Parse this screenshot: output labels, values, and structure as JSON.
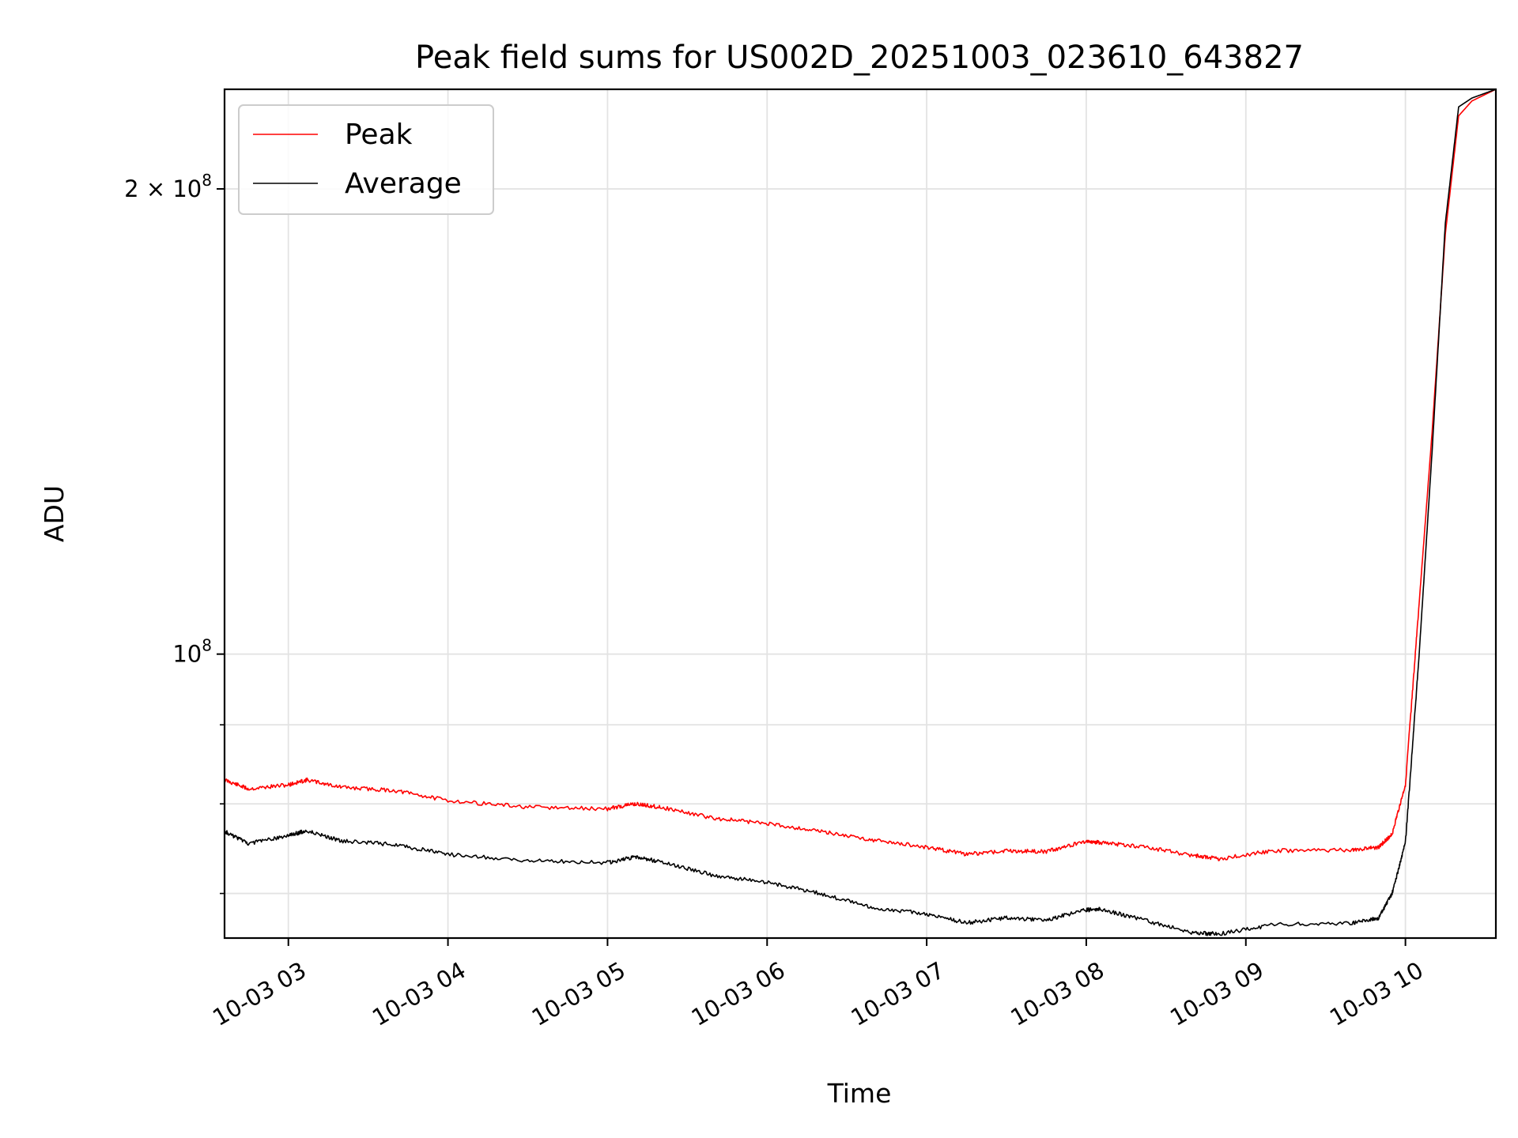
{
  "chart_data": {
    "type": "line",
    "title": "Peak field sums for US002D_20251003_023610_643827",
    "xlabel": "Time",
    "ylabel": "ADU",
    "x_scale": "time",
    "y_scale": "log",
    "xlim": [
      "10-03 02:36",
      "10-03 10:34"
    ],
    "ylim": [
      65500000,
      232000000
    ],
    "grid": true,
    "legend": "upper-left",
    "x_ticks": [
      "10-03 03",
      "10-03 04",
      "10-03 05",
      "10-03 06",
      "10-03 07",
      "10-03 08",
      "10-03 09",
      "10-03 10"
    ],
    "x_tick_rotation_deg": 30,
    "y_ticks": [
      {
        "value": 200000000,
        "label": "2 × 10⁸",
        "base": "2 × 10",
        "exp": "8"
      },
      {
        "value": 100000000,
        "label": "10⁸",
        "base": "10",
        "exp": "8"
      }
    ],
    "y_minor_ticks": [
      70000000,
      80000000,
      90000000
    ],
    "x": [
      "10-03 02:36",
      "10-03 02:45",
      "10-03 03:00",
      "10-03 03:07",
      "10-03 03:20",
      "10-03 03:40",
      "10-03 04:00",
      "10-03 04:30",
      "10-03 05:00",
      "10-03 05:10",
      "10-03 05:20",
      "10-03 05:40",
      "10-03 06:00",
      "10-03 06:20",
      "10-03 06:40",
      "10-03 07:00",
      "10-03 07:15",
      "10-03 07:30",
      "10-03 07:45",
      "10-03 08:00",
      "10-03 08:05",
      "10-03 08:20",
      "10-03 08:40",
      "10-03 08:50",
      "10-03 09:10",
      "10-03 09:40",
      "10-03 09:50",
      "10-03 09:55",
      "10-03 10:00",
      "10-03 10:05",
      "10-03 10:10",
      "10-03 10:15",
      "10-03 10:20",
      "10-03 10:25",
      "10-03 10:34"
    ],
    "series": [
      {
        "name": "Peak",
        "color": "#ff0000",
        "values": [
          82900000,
          81800000,
          82300000,
          82900000,
          82000000,
          81600000,
          80400000,
          79600000,
          79400000,
          80000000,
          79600000,
          78300000,
          77700000,
          76800000,
          75800000,
          75000000,
          74200000,
          74600000,
          74500000,
          75700000,
          75500000,
          75100000,
          74100000,
          73700000,
          74600000,
          74700000,
          75000000,
          76500000,
          82300000,
          107000000,
          139000000,
          187000000,
          223000000,
          228000000,
          232000000
        ]
      },
      {
        "name": "Average",
        "color": "#000000",
        "values": [
          76800000,
          75400000,
          76300000,
          76900000,
          75700000,
          75300000,
          74200000,
          73500000,
          73300000,
          73900000,
          73400000,
          71900000,
          71200000,
          70000000,
          68500000,
          67900000,
          67000000,
          67500000,
          67300000,
          68300000,
          68400000,
          67400000,
          66000000,
          65900000,
          66800000,
          67000000,
          67500000,
          70000000,
          75500000,
          99000000,
          135000000,
          190000000,
          226000000,
          229000000,
          232000000
        ]
      }
    ]
  }
}
